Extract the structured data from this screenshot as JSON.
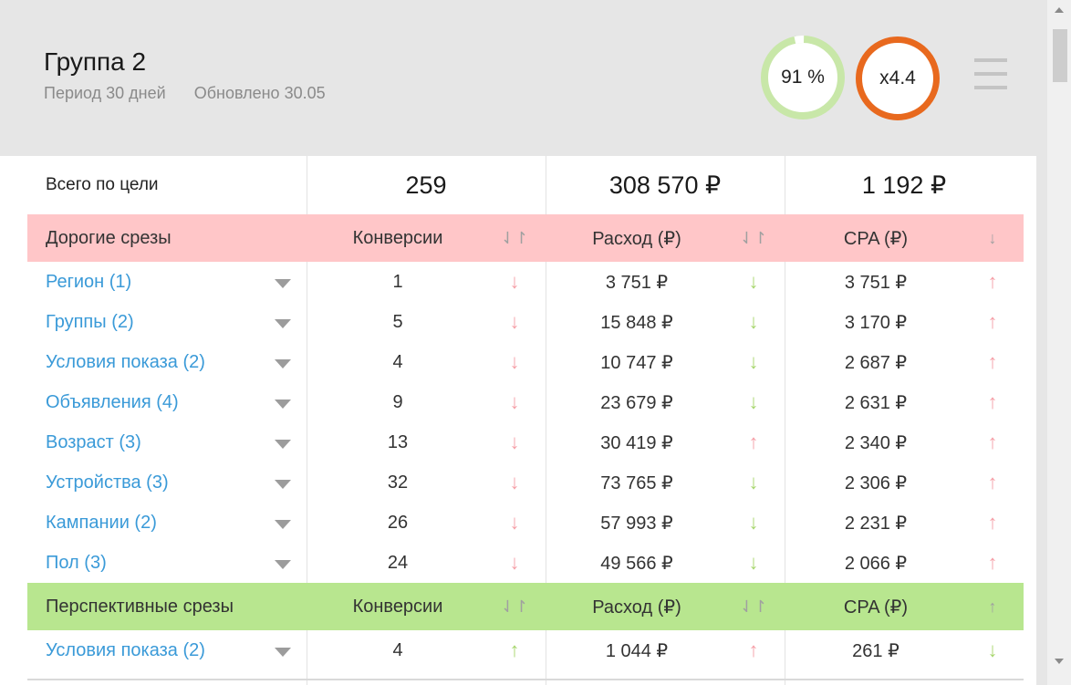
{
  "header": {
    "title": "Группа 2",
    "period": "Период 30 дней",
    "updated": "Обновлено 30.05",
    "score_ring": "91 %",
    "multiplier_ring": "x4.4",
    "menu_icon": "hamburger-menu-icon",
    "score_percent": 91,
    "colors": {
      "score_ring": "#c8e7a8",
      "multiplier_ring": "#e8691e"
    }
  },
  "totals": {
    "label": "Всего по цели",
    "conversions": "259",
    "spend": "308 570 ₽",
    "cpa": "1 192 ₽"
  },
  "sections": {
    "expensive": {
      "label": "Дорогие срезы",
      "col_conversions": "Конверсии",
      "col_spend": "Расход (₽)",
      "col_cpa": "CPA (₽)",
      "sort_conversions": "⇃↾",
      "sort_spend": "⇃↾",
      "sort_cpa": "↓",
      "color": "#ffc6c8"
    },
    "promising": {
      "label": "Перспективные срезы",
      "col_conversions": "Конверсии",
      "col_spend": "Расход (₽)",
      "col_cpa": "CPA (₽)",
      "sort_conversions": "⇃↾",
      "sort_spend": "⇃↾",
      "sort_cpa": "↑",
      "color": "#b8e68f"
    }
  },
  "expensive_rows": [
    {
      "name": "Регион (1)",
      "conv": "1",
      "conv_trend": "↓",
      "spend": "3 751 ₽",
      "spend_trend": "↓",
      "cpa": "3 751 ₽",
      "cpa_trend": "↑"
    },
    {
      "name": "Группы (2)",
      "conv": "5",
      "conv_trend": "↓",
      "spend": "15 848 ₽",
      "spend_trend": "↓",
      "cpa": "3 170 ₽",
      "cpa_trend": "↑"
    },
    {
      "name": "Условия показа (2)",
      "conv": "4",
      "conv_trend": "↓",
      "spend": "10 747 ₽",
      "spend_trend": "↓",
      "cpa": "2 687 ₽",
      "cpa_trend": "↑"
    },
    {
      "name": "Объявления (4)",
      "conv": "9",
      "conv_trend": "↓",
      "spend": "23 679 ₽",
      "spend_trend": "↓",
      "cpa": "2 631 ₽",
      "cpa_trend": "↑"
    },
    {
      "name": "Возраст (3)",
      "conv": "13",
      "conv_trend": "↓",
      "spend": "30 419 ₽",
      "spend_trend": "↑",
      "cpa": "2 340 ₽",
      "cpa_trend": "↑"
    },
    {
      "name": "Устройства (3)",
      "conv": "32",
      "conv_trend": "↓",
      "spend": "73 765 ₽",
      "spend_trend": "↓",
      "cpa": "2 306 ₽",
      "cpa_trend": "↑"
    },
    {
      "name": "Кампании (2)",
      "conv": "26",
      "conv_trend": "↓",
      "spend": "57 993 ₽",
      "spend_trend": "↓",
      "cpa": "2 231 ₽",
      "cpa_trend": "↑"
    },
    {
      "name": "Пол (3)",
      "conv": "24",
      "conv_trend": "↓",
      "spend": "49 566 ₽",
      "spend_trend": "↓",
      "cpa": "2 066 ₽",
      "cpa_trend": "↑"
    }
  ],
  "promising_rows": [
    {
      "name": "Условия показа (2)",
      "conv": "4",
      "conv_trend": "↑",
      "spend": "1 044 ₽",
      "spend_trend": "↑",
      "cpa": "261 ₽",
      "cpa_trend": "↓"
    }
  ]
}
